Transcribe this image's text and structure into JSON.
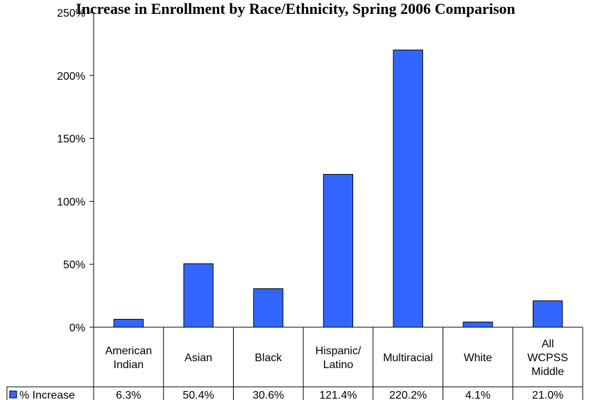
{
  "chart_data": {
    "type": "bar",
    "title": "Increase in Enrollment by Race/Ethnicity, Spring 2006 Comparison",
    "categories": [
      [
        "American",
        "Indian"
      ],
      [
        "Asian"
      ],
      [
        "Black"
      ],
      [
        "Hispanic/",
        "Latino"
      ],
      [
        "Multiracial"
      ],
      [
        "White"
      ],
      [
        "All",
        "WCPSS",
        "Middle"
      ]
    ],
    "series": [
      {
        "name": "% Increase",
        "values": [
          6.3,
          50.4,
          30.6,
          121.4,
          220.2,
          4.1,
          21.0
        ],
        "labels": [
          "6.3%",
          "50.4%",
          "30.6%",
          "121.4%",
          "220.2%",
          "4.1%",
          "21.0%"
        ],
        "color": "#3366ff"
      }
    ],
    "ylim": [
      0,
      250
    ],
    "yticks": [
      "0%",
      "50%",
      "100%",
      "150%",
      "200%",
      "250%"
    ],
    "grid": false,
    "legend": "data-table-left"
  }
}
